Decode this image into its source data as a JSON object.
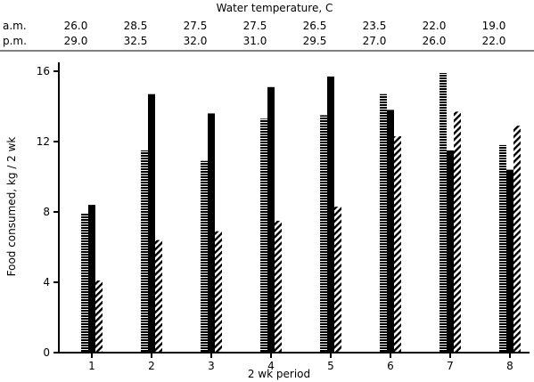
{
  "chart_data": {
    "type": "bar",
    "title": "Water temperature, C",
    "xlabel": "2 wk period",
    "ylabel": "Food consumed, kg / 2 wk",
    "categories": [
      "1",
      "2",
      "3",
      "4",
      "5",
      "6",
      "7",
      "8"
    ],
    "ylim": [
      0,
      16
    ],
    "yticks": [
      "0",
      "4",
      "8",
      "12",
      "16"
    ],
    "grid": false,
    "temperature_rows": [
      {
        "label": "a.m.",
        "values": [
          "26.0",
          "28.5",
          "27.5",
          "27.5",
          "26.5",
          "23.5",
          "22.0",
          "19.0"
        ]
      },
      {
        "label": "p.m.",
        "values": [
          "29.0",
          "32.5",
          "32.0",
          "31.0",
          "29.5",
          "27.0",
          "26.0",
          "22.0"
        ]
      }
    ],
    "series": [
      {
        "pattern": "horizontal-hatch",
        "values": [
          7.9,
          11.5,
          10.9,
          13.3,
          13.5,
          14.7,
          15.9,
          11.8
        ]
      },
      {
        "pattern": "solid",
        "values": [
          8.4,
          14.7,
          13.6,
          15.1,
          15.7,
          13.8,
          11.5,
          10.4
        ]
      },
      {
        "pattern": "diagonal-hatch",
        "values": [
          4.1,
          6.4,
          6.9,
          7.5,
          8.3,
          12.3,
          13.7,
          12.9
        ]
      }
    ],
    "colors": {
      "ink": "#000000",
      "background": "#ffffff"
    }
  }
}
